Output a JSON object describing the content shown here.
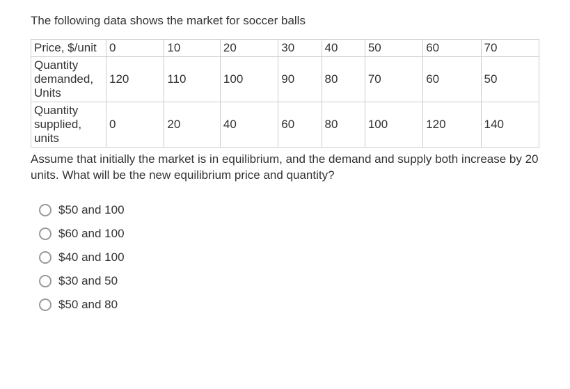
{
  "intro_text": "The following data shows the market for soccer balls",
  "table": {
    "border_color": "#cccccc",
    "text_color": "#333333",
    "font_size": 17,
    "row_labels": [
      "Price, $/unit",
      "Quantity demanded, Units",
      "Quantity supplied, units"
    ],
    "columns": [
      "0",
      "10",
      "20",
      "30",
      "40",
      "50",
      "60",
      "70"
    ],
    "rows": [
      [
        "0",
        "10",
        "20",
        "30",
        "40",
        "50",
        "60",
        "70"
      ],
      [
        "120",
        "110",
        "100",
        "90",
        "80",
        "70",
        "60",
        "50"
      ],
      [
        "0",
        "20",
        "40",
        "60",
        "80",
        "100",
        "120",
        "140"
      ]
    ]
  },
  "followup_text": "Assume that initially the market is in equilibrium, and the demand and supply both increase by 20 units. What will be the new equilibrium price and quantity?",
  "options": [
    "$50 and 100",
    "$60 and 100",
    "$40 and 100",
    "$30 and 50",
    "$50 and 80"
  ],
  "colors": {
    "background": "#ffffff",
    "text": "#333333",
    "radio_border": "#999999"
  }
}
